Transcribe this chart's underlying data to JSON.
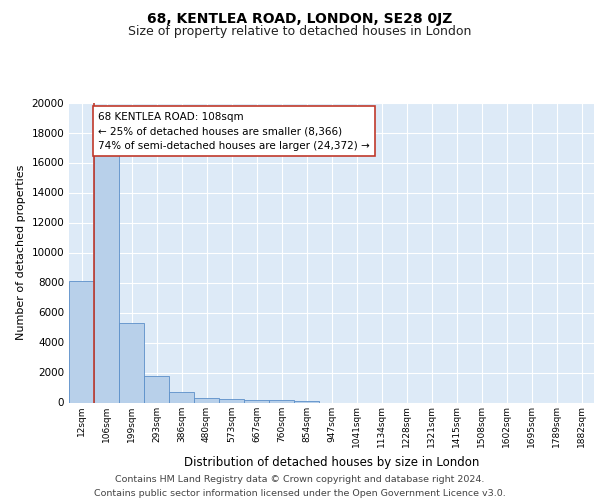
{
  "title1": "68, KENTLEA ROAD, LONDON, SE28 0JZ",
  "title2": "Size of property relative to detached houses in London",
  "xlabel": "Distribution of detached houses by size in London",
  "ylabel": "Number of detached properties",
  "bin_labels": [
    "12sqm",
    "106sqm",
    "199sqm",
    "293sqm",
    "386sqm",
    "480sqm",
    "573sqm",
    "667sqm",
    "760sqm",
    "854sqm",
    "947sqm",
    "1041sqm",
    "1134sqm",
    "1228sqm",
    "1321sqm",
    "1415sqm",
    "1508sqm",
    "1602sqm",
    "1695sqm",
    "1789sqm",
    "1882sqm"
  ],
  "bar_heights": [
    8100,
    16700,
    5300,
    1750,
    700,
    300,
    250,
    200,
    160,
    120,
    0,
    0,
    0,
    0,
    0,
    0,
    0,
    0,
    0,
    0,
    0
  ],
  "bar_color": "#b8d0ea",
  "bar_edge_color": "#5b8fc9",
  "background_color": "#ddeaf7",
  "grid_color": "#ffffff",
  "vline_x": 1.0,
  "vline_color": "#c0392b",
  "annotation_text": "68 KENTLEA ROAD: 108sqm\n← 25% of detached houses are smaller (8,366)\n74% of semi-detached houses are larger (24,372) →",
  "annotation_box_color": "#ffffff",
  "annotation_edge_color": "#c0392b",
  "ylim": [
    0,
    20000
  ],
  "yticks": [
    0,
    2000,
    4000,
    6000,
    8000,
    10000,
    12000,
    14000,
    16000,
    18000,
    20000
  ],
  "footer": "Contains HM Land Registry data © Crown copyright and database right 2024.\nContains public sector information licensed under the Open Government Licence v3.0.",
  "title1_fontsize": 10,
  "title2_fontsize": 9,
  "annotation_fontsize": 7.5,
  "footer_fontsize": 6.8,
  "ylabel_fontsize": 8,
  "xlabel_fontsize": 8.5,
  "ytick_fontsize": 7.5,
  "xtick_fontsize": 6.5
}
